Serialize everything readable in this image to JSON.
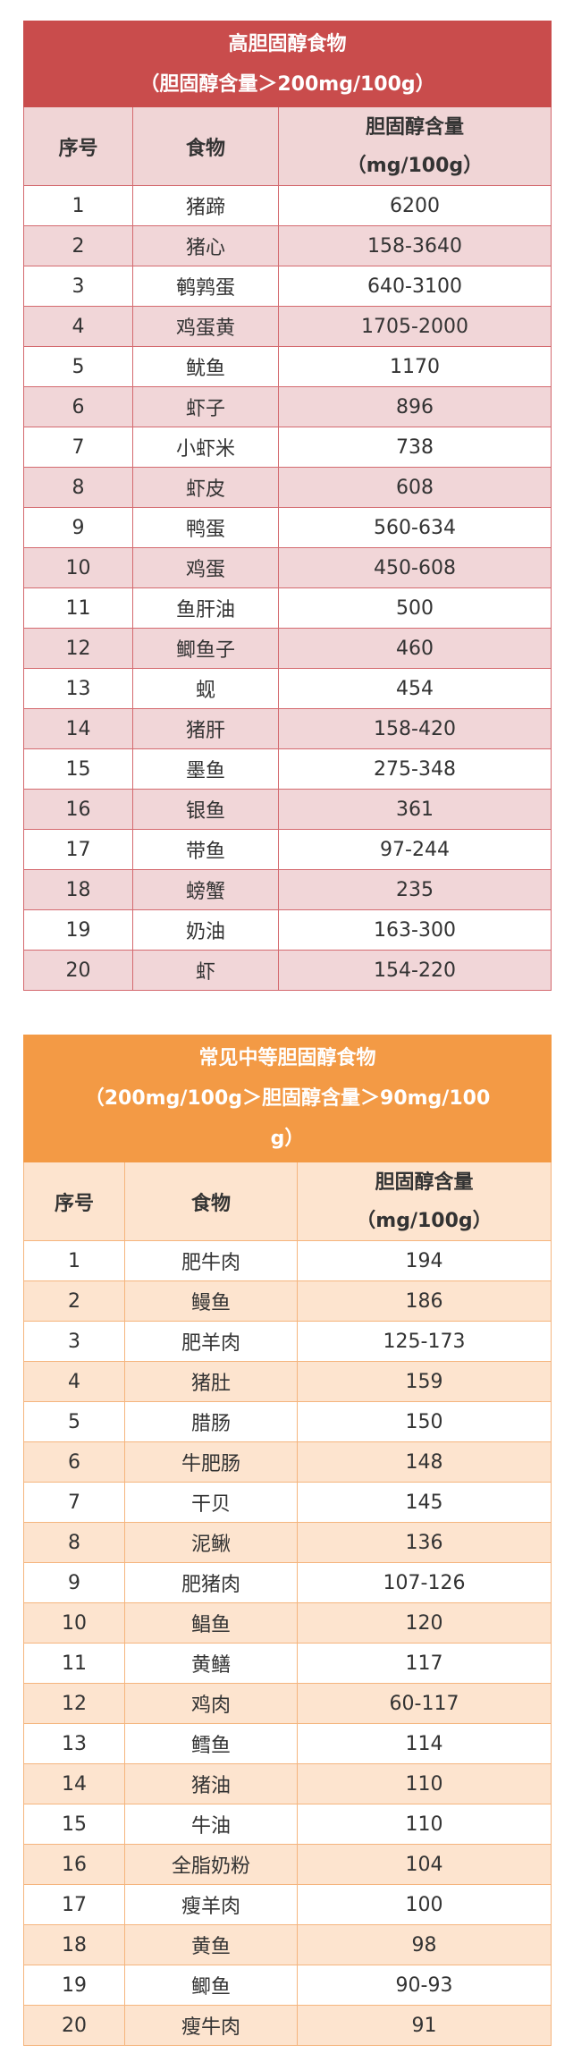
{
  "high_table": {
    "title": "高胆固醇食物",
    "subtitle": "（胆固醇含量＞200mg/100g）",
    "header": {
      "no": "序号",
      "food": "食物",
      "content": "胆固醇含量",
      "unit": "（mg/100g）"
    },
    "rows": [
      {
        "no": "1",
        "food": "猪蹄",
        "value": "6200"
      },
      {
        "no": "2",
        "food": "猪心",
        "value": "158-3640"
      },
      {
        "no": "3",
        "food": "鹌鹑蛋",
        "value": "640-3100"
      },
      {
        "no": "4",
        "food": "鸡蛋黄",
        "value": "1705-2000"
      },
      {
        "no": "5",
        "food": "鱿鱼",
        "value": "1170"
      },
      {
        "no": "6",
        "food": "虾子",
        "value": "896"
      },
      {
        "no": "7",
        "food": "小虾米",
        "value": "738"
      },
      {
        "no": "8",
        "food": "虾皮",
        "value": "608"
      },
      {
        "no": "9",
        "food": "鸭蛋",
        "value": "560-634"
      },
      {
        "no": "10",
        "food": "鸡蛋",
        "value": "450-608"
      },
      {
        "no": "11",
        "food": "鱼肝油",
        "value": "500"
      },
      {
        "no": "12",
        "food": "鲫鱼子",
        "value": "460"
      },
      {
        "no": "13",
        "food": "蚬",
        "value": "454"
      },
      {
        "no": "14",
        "food": "猪肝",
        "value": "158-420"
      },
      {
        "no": "15",
        "food": "墨鱼",
        "value": "275-348"
      },
      {
        "no": "16",
        "food": "银鱼",
        "value": "361"
      },
      {
        "no": "17",
        "food": "带鱼",
        "value": "97-244"
      },
      {
        "no": "18",
        "food": "螃蟹",
        "value": "235"
      },
      {
        "no": "19",
        "food": "奶油",
        "value": "163-300"
      },
      {
        "no": "20",
        "food": "虾",
        "value": "154-220"
      }
    ]
  },
  "mid_table": {
    "title": "常见中等胆固醇食物",
    "subtitle_line1": "（200mg/100g＞胆固醇含量＞90mg/100",
    "subtitle_line2": "g）",
    "header": {
      "no": "序号",
      "food": "食物",
      "content": "胆固醇含量",
      "unit": "（mg/100g）"
    },
    "rows": [
      {
        "no": "1",
        "food": "肥牛肉",
        "value": "194"
      },
      {
        "no": "2",
        "food": "鳗鱼",
        "value": "186"
      },
      {
        "no": "3",
        "food": "肥羊肉",
        "value": "125-173"
      },
      {
        "no": "4",
        "food": "猪肚",
        "value": "159"
      },
      {
        "no": "5",
        "food": "腊肠",
        "value": "150"
      },
      {
        "no": "6",
        "food": "牛肥肠",
        "value": "148"
      },
      {
        "no": "7",
        "food": "干贝",
        "value": "145"
      },
      {
        "no": "8",
        "food": "泥鳅",
        "value": "136"
      },
      {
        "no": "9",
        "food": "肥猪肉",
        "value": "107-126"
      },
      {
        "no": "10",
        "food": "鲳鱼",
        "value": "120"
      },
      {
        "no": "11",
        "food": "黄鳝",
        "value": "117"
      },
      {
        "no": "12",
        "food": "鸡肉",
        "value": "60-117"
      },
      {
        "no": "13",
        "food": "鳕鱼",
        "value": "114"
      },
      {
        "no": "14",
        "food": "猪油",
        "value": "110"
      },
      {
        "no": "15",
        "food": "牛油",
        "value": "110"
      },
      {
        "no": "16",
        "food": "全脂奶粉",
        "value": "104"
      },
      {
        "no": "17",
        "food": "瘦羊肉",
        "value": "100"
      },
      {
        "no": "18",
        "food": "黄鱼",
        "value": "98"
      },
      {
        "no": "19",
        "food": "鲫鱼",
        "value": "90-93"
      },
      {
        "no": "20",
        "food": "瘦牛肉",
        "value": "91"
      }
    ]
  },
  "colors": {
    "high_title_bg": "#c94c4c",
    "high_stripe": "#f1d6d8",
    "mid_title_bg": "#f39a45",
    "mid_stripe": "#fde4cf"
  }
}
